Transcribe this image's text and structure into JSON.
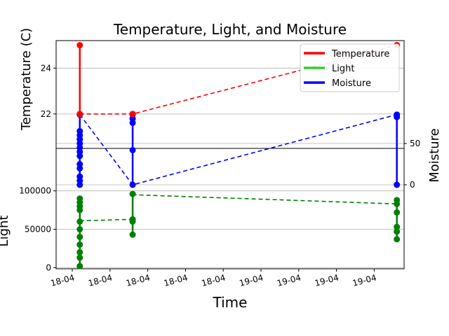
{
  "chart_data": {
    "type": "line",
    "title": "Temperature, Light, and Moisture",
    "xlabel": "Time",
    "x_ticks": [
      "18-04",
      "18-04",
      "18-04",
      "18-04",
      "18-04",
      "19-04",
      "19-04",
      "19-04",
      "19-04"
    ],
    "legend": {
      "placement": "top-right",
      "entries": [
        {
          "name": "Temperature",
          "color": "#ff0000"
        },
        {
          "name": "Light",
          "color": "#33cc33"
        },
        {
          "name": "Moisture",
          "color": "#0000ff"
        }
      ]
    },
    "grid": true,
    "panels": {
      "temperature": {
        "ylabel": "Temperature (C)",
        "yticks": [
          22,
          24
        ],
        "ylim": [
          20.5,
          25.2
        ],
        "color": "#ff0000",
        "groups": [
          {
            "x": 0.2,
            "values": [
              25.0,
              22.0
            ]
          },
          {
            "x": 1.6,
            "values": [
              22.0,
              22.0
            ]
          },
          {
            "x": 8.6,
            "values": [
              25.0,
              25.0
            ]
          }
        ],
        "trend": [
          [
            0.2,
            22.0
          ],
          [
            1.6,
            22.0
          ],
          [
            8.6,
            25.0
          ]
        ]
      },
      "moisture": {
        "ylabel": "Moisture",
        "yticks": [
          0,
          50
        ],
        "ylim": [
          -100,
          100
        ],
        "color": "#0000ff",
        "groups": [
          {
            "x": 0.2,
            "values": [
              85,
              65,
              60,
              55,
              50,
              45,
              40,
              35,
              25,
              20,
              10,
              5,
              0
            ]
          },
          {
            "x": 1.6,
            "values": [
              85,
              80,
              75,
              42,
              0
            ]
          },
          {
            "x": 8.6,
            "values": [
              85,
              82,
              0
            ]
          }
        ],
        "trend": [
          [
            0.2,
            85
          ],
          [
            1.6,
            0
          ],
          [
            8.6,
            85
          ]
        ]
      },
      "light": {
        "ylabel": "Light",
        "yticks": [
          0,
          50000,
          100000
        ],
        "ylim": [
          -1500,
          107000
        ],
        "color": "#008000",
        "groups": [
          {
            "x": 0.2,
            "values": [
              90000,
              85000,
              80000,
              75000,
              60000,
              50000,
              40000,
              30000,
              20000,
              13000,
              2000
            ]
          },
          {
            "x": 1.6,
            "values": [
              96000,
              63000,
              60000,
              43000
            ]
          },
          {
            "x": 8.6,
            "values": [
              88000,
              83000,
              72000,
              53000,
              47000,
              37000
            ]
          }
        ],
        "trend": [
          [
            0.2,
            61000
          ],
          [
            1.6,
            63000
          ],
          [
            1.6,
            95000
          ],
          [
            8.6,
            83000
          ]
        ]
      }
    }
  }
}
